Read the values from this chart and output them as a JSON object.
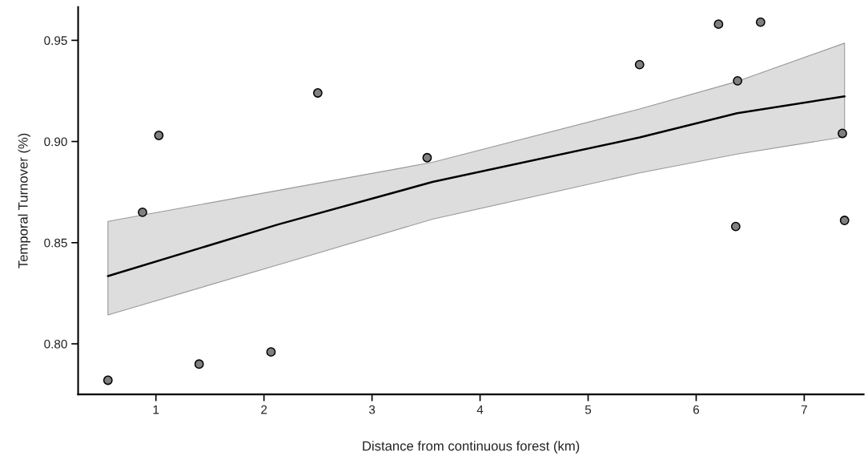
{
  "chart_data": {
    "type": "scatter",
    "xlabel": "Distance from continuous forest (km)",
    "ylabel": "Temporal Turnover (%)",
    "xlim": [
      0.28,
      7.55
    ],
    "ylim": [
      0.775,
      0.9665
    ],
    "xticks": [
      1,
      2,
      3,
      4,
      5,
      6,
      7
    ],
    "yticks": [
      {
        "value": 0.8,
        "label": "0.80"
      },
      {
        "value": 0.85,
        "label": "0.85"
      },
      {
        "value": 0.9,
        "label": "0.90"
      },
      {
        "value": 0.95,
        "label": "0.95"
      }
    ],
    "grid": false,
    "series": [
      {
        "marker": "circle",
        "color": "#808080",
        "x": [
          0.556,
          1.4,
          2.065,
          0.876,
          1.027,
          2.498,
          3.51,
          5.476,
          6.207,
          6.596,
          6.383,
          6.366,
          7.353,
          7.373
        ],
        "values": [
          0.782,
          0.79,
          0.796,
          0.865,
          0.903,
          0.924,
          0.892,
          0.938,
          0.958,
          0.959,
          0.93,
          0.858,
          0.904,
          0.861
        ]
      },
      {
        "type": "line",
        "color": "#000000",
        "x": [
          0.556,
          2.13,
          3.56,
          5.476,
          6.38,
          7.373
        ],
        "values": [
          0.8335,
          0.859,
          0.88,
          0.902,
          0.914,
          0.9223
        ],
        "lower": [
          0.8143,
          0.839,
          0.8616,
          0.8845,
          0.8938,
          0.9023
        ],
        "upper": [
          0.8605,
          0.8758,
          0.8897,
          0.9161,
          0.9297,
          0.9486
        ]
      }
    ]
  }
}
